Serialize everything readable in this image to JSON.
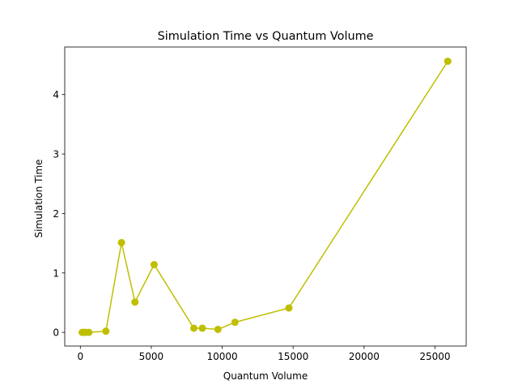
{
  "chart_data": {
    "type": "line",
    "title": "Simulation Time vs Quantum Volume",
    "xlabel": "Quantum Volume",
    "ylabel": "Simulation Time",
    "xlim": [
      -1100,
      27200
    ],
    "ylim": [
      -0.23,
      4.8
    ],
    "xticks": [
      0,
      5000,
      10000,
      15000,
      20000,
      25000
    ],
    "yticks": [
      0,
      1,
      2,
      3,
      4
    ],
    "grid": false,
    "series": [
      {
        "color": "#bfbf00",
        "marker": "circle",
        "x": [
          128,
          256,
          384,
          600,
          1800,
          2900,
          3850,
          5200,
          8000,
          8600,
          9700,
          10900,
          14700,
          25900
        ],
        "y": [
          0.0,
          0.0,
          0.0,
          0.0,
          0.02,
          1.51,
          0.51,
          1.14,
          0.07,
          0.07,
          0.05,
          0.17,
          0.41,
          4.56
        ]
      }
    ]
  }
}
